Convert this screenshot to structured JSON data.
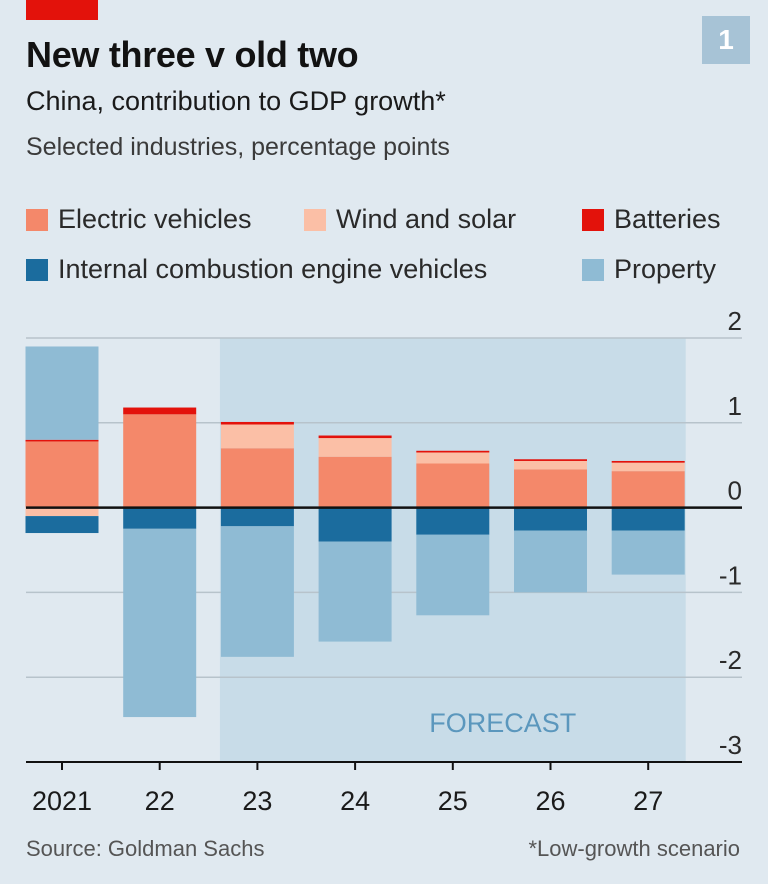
{
  "header": {
    "chart_number": "1",
    "title": "New three v old two",
    "subtitle": "China, contribution to GDP growth*",
    "subsubtitle": "Selected industries, percentage points"
  },
  "footer": {
    "source": "Source: Goldman Sachs",
    "note": "*Low-growth scenario"
  },
  "colors": {
    "background": "#e0e9f0",
    "forecast_shade": "#c8dce8",
    "accent_red": "#e3120b"
  },
  "chart_data": {
    "type": "bar",
    "stacked": true,
    "title": "New three v old two",
    "subtitle": "China, contribution to GDP growth*",
    "ylabel": "Selected industries, percentage points",
    "categories": [
      "2021",
      "22",
      "23",
      "24",
      "25",
      "26",
      "27"
    ],
    "ylim": [
      -3,
      2
    ],
    "yticks": [
      2,
      1,
      0,
      -1,
      -2,
      -3
    ],
    "grid": true,
    "legend_position": "top",
    "forecast_label": "FORECAST",
    "forecast_categories": [
      "23",
      "24",
      "25",
      "26",
      "27"
    ],
    "series": [
      {
        "name": "Electric vehicles",
        "color": "#f4886a",
        "values": [
          0.78,
          1.1,
          0.7,
          0.6,
          0.52,
          0.45,
          0.43
        ]
      },
      {
        "name": "Wind and solar",
        "color": "#fbbfa6",
        "values": [
          -0.1,
          0.0,
          0.28,
          0.22,
          0.13,
          0.1,
          0.1
        ]
      },
      {
        "name": "Batteries",
        "color": "#e3120b",
        "values": [
          0.02,
          0.08,
          0.03,
          0.03,
          0.02,
          0.02,
          0.02
        ]
      },
      {
        "name": "Internal combustion engine vehicles",
        "color": "#1b6c9e",
        "values": [
          -0.2,
          -0.25,
          -0.22,
          -0.4,
          -0.32,
          -0.27,
          -0.27
        ]
      },
      {
        "name": "Property",
        "color": "#8fbbd4",
        "values": [
          1.1,
          -2.22,
          -1.54,
          -1.18,
          -0.95,
          -0.73,
          -0.52
        ]
      }
    ]
  }
}
